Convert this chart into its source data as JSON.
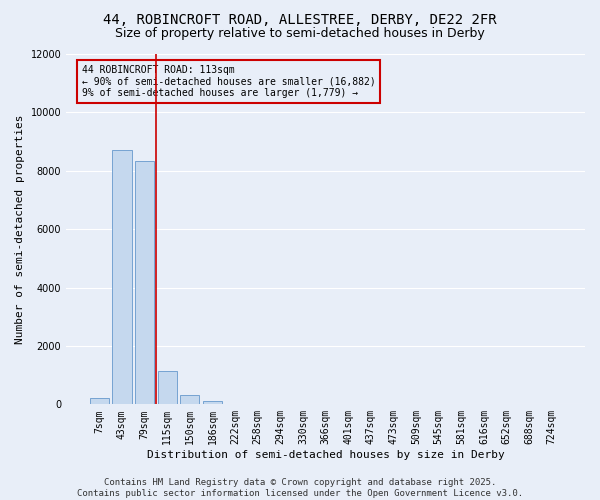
{
  "title_line1": "44, ROBINCROFT ROAD, ALLESTREE, DERBY, DE22 2FR",
  "title_line2": "Size of property relative to semi-detached houses in Derby",
  "xlabel": "Distribution of semi-detached houses by size in Derby",
  "ylabel": "Number of semi-detached properties",
  "categories": [
    "7sqm",
    "43sqm",
    "79sqm",
    "115sqm",
    "150sqm",
    "186sqm",
    "222sqm",
    "258sqm",
    "294sqm",
    "330sqm",
    "366sqm",
    "401sqm",
    "437sqm",
    "473sqm",
    "509sqm",
    "545sqm",
    "581sqm",
    "616sqm",
    "652sqm",
    "688sqm",
    "724sqm"
  ],
  "values": [
    200,
    8700,
    8350,
    1150,
    330,
    110,
    0,
    0,
    0,
    0,
    0,
    0,
    0,
    0,
    0,
    0,
    0,
    0,
    0,
    0,
    0
  ],
  "bar_color": "#c5d8ee",
  "bar_edge_color": "#6699cc",
  "vline_color": "#cc0000",
  "annotation_title": "44 ROBINCROFT ROAD: 113sqm",
  "annotation_line2": "← 90% of semi-detached houses are smaller (16,882)",
  "annotation_line3": "9% of semi-detached houses are larger (1,779) →",
  "annotation_box_color": "#cc0000",
  "ylim": [
    0,
    12000
  ],
  "yticks": [
    0,
    2000,
    4000,
    6000,
    8000,
    10000,
    12000
  ],
  "background_color": "#e8eef8",
  "grid_color": "#ffffff",
  "footer_line1": "Contains HM Land Registry data © Crown copyright and database right 2025.",
  "footer_line2": "Contains public sector information licensed under the Open Government Licence v3.0.",
  "title_fontsize": 10,
  "subtitle_fontsize": 9,
  "axis_label_fontsize": 8,
  "tick_fontsize": 7,
  "footer_fontsize": 6.5
}
